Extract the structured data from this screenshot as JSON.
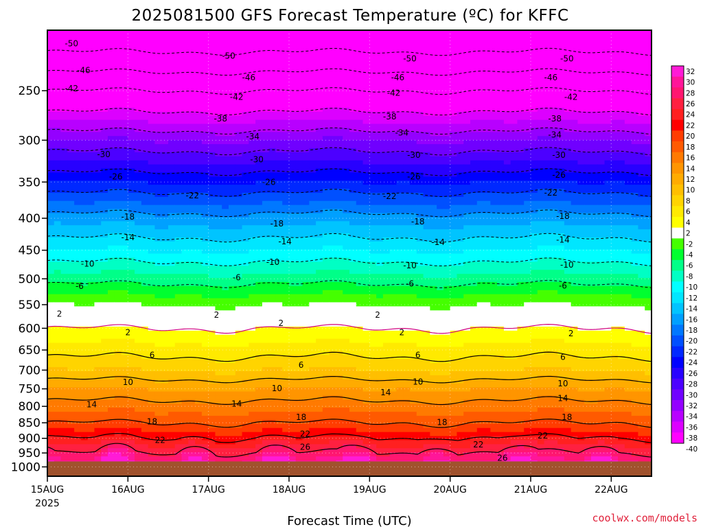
{
  "chart_data": {
    "type": "heatmap",
    "title": "2025081500 GFS Forecast Temperature (ºC) for KFFC",
    "xlabel": "Forecast Time (UTC)",
    "ylabel": "",
    "credit": "coolwx.com/models",
    "x_ticks": [
      "15AUG",
      "16AUG",
      "17AUG",
      "18AUG",
      "19AUG",
      "20AUG",
      "21AUG",
      "22AUG"
    ],
    "x_year": "2025",
    "x_range_days": [
      0,
      7.5
    ],
    "y_ticks": [
      250,
      300,
      350,
      400,
      450,
      500,
      550,
      600,
      650,
      700,
      750,
      800,
      850,
      900,
      950,
      1000
    ],
    "y_range_hpa": [
      1035,
      200
    ],
    "colorbar_levels": [
      32,
      30,
      28,
      26,
      24,
      22,
      20,
      18,
      16,
      14,
      12,
      10,
      8,
      6,
      4,
      2,
      -2,
      -4,
      -6,
      -8,
      -10,
      -12,
      -14,
      -16,
      -18,
      -20,
      -22,
      -24,
      -26,
      -28,
      -30,
      -32,
      -34,
      -36,
      -38,
      -40
    ],
    "colorbar_colors": [
      "#ff1bd6",
      "#ff1699",
      "#ff1770",
      "#ff2040",
      "#ff2020",
      "#ff0000",
      "#ff3d00",
      "#ff5a00",
      "#ff7a00",
      "#ff9500",
      "#ffab00",
      "#ffbf00",
      "#ffd400",
      "#ffea00",
      "#ffff00",
      "#ffffff",
      "#45ff00",
      "#00ff30",
      "#00ff88",
      "#00ffc4",
      "#00ffff",
      "#00e6ff",
      "#00c4ff",
      "#00a0ff",
      "#0078ff",
      "#0050ff",
      "#0028ff",
      "#0000ff",
      "#2800ff",
      "#4c00ff",
      "#7000ff",
      "#9400ff",
      "#b800ff",
      "#dc00ff",
      "#ff00ff"
    ],
    "temperature_profile_day0": [
      {
        "p": 200,
        "t": -54
      },
      {
        "p": 250,
        "t": -42
      },
      {
        "p": 300,
        "t": -32
      },
      {
        "p": 350,
        "t": -24
      },
      {
        "p": 400,
        "t": -17
      },
      {
        "p": 450,
        "t": -12
      },
      {
        "p": 500,
        "t": -7
      },
      {
        "p": 550,
        "t": -2
      },
      {
        "p": 600,
        "t": 2
      },
      {
        "p": 650,
        "t": 5
      },
      {
        "p": 700,
        "t": 8
      },
      {
        "p": 750,
        "t": 12
      },
      {
        "p": 800,
        "t": 15
      },
      {
        "p": 850,
        "t": 18
      },
      {
        "p": 900,
        "t": 22
      },
      {
        "p": 950,
        "t": 26
      },
      {
        "p": 1000,
        "t": 30
      }
    ],
    "contour_labels": [
      {
        "text": "-50",
        "day": 0.3,
        "p": 210
      },
      {
        "text": "-50",
        "day": 2.25,
        "p": 220
      },
      {
        "text": "-50",
        "day": 4.5,
        "p": 222
      },
      {
        "text": "-50",
        "day": 6.45,
        "p": 222
      },
      {
        "text": "-46",
        "day": 0.45,
        "p": 232
      },
      {
        "text": "-46",
        "day": 2.5,
        "p": 238
      },
      {
        "text": "-46",
        "day": 4.35,
        "p": 238
      },
      {
        "text": "-46",
        "day": 6.25,
        "p": 238
      },
      {
        "text": "-42",
        "day": 0.3,
        "p": 248
      },
      {
        "text": "-42",
        "day": 2.35,
        "p": 256
      },
      {
        "text": "-42",
        "day": 4.3,
        "p": 252
      },
      {
        "text": "-42",
        "day": 6.5,
        "p": 256
      },
      {
        "text": "-38",
        "day": 2.15,
        "p": 277
      },
      {
        "text": "-38",
        "day": 4.25,
        "p": 275
      },
      {
        "text": "-38",
        "day": 6.3,
        "p": 277
      },
      {
        "text": "-34",
        "day": 2.55,
        "p": 296
      },
      {
        "text": "-34",
        "day": 4.4,
        "p": 292
      },
      {
        "text": "-34",
        "day": 6.3,
        "p": 294
      },
      {
        "text": "-30",
        "day": 0.7,
        "p": 316
      },
      {
        "text": "-30",
        "day": 2.6,
        "p": 322
      },
      {
        "text": "-30",
        "day": 4.55,
        "p": 317
      },
      {
        "text": "-30",
        "day": 6.35,
        "p": 317
      },
      {
        "text": "-26",
        "day": 0.85,
        "p": 343
      },
      {
        "text": "-26",
        "day": 2.75,
        "p": 350
      },
      {
        "text": "-26",
        "day": 4.55,
        "p": 343
      },
      {
        "text": "-26",
        "day": 6.35,
        "p": 341
      },
      {
        "text": "-22",
        "day": 1.8,
        "p": 368
      },
      {
        "text": "-22",
        "day": 4.25,
        "p": 369
      },
      {
        "text": "-22",
        "day": 6.25,
        "p": 364
      },
      {
        "text": "-18",
        "day": 1.0,
        "p": 398
      },
      {
        "text": "-18",
        "day": 2.85,
        "p": 408
      },
      {
        "text": "-18",
        "day": 4.6,
        "p": 405
      },
      {
        "text": "-18",
        "day": 6.4,
        "p": 397
      },
      {
        "text": "-14",
        "day": 1.0,
        "p": 429
      },
      {
        "text": "-14",
        "day": 2.95,
        "p": 436
      },
      {
        "text": "-14",
        "day": 4.85,
        "p": 437
      },
      {
        "text": "-14",
        "day": 6.4,
        "p": 433
      },
      {
        "text": "-10",
        "day": 0.5,
        "p": 473
      },
      {
        "text": "-10",
        "day": 2.8,
        "p": 470
      },
      {
        "text": "-10",
        "day": 4.5,
        "p": 476
      },
      {
        "text": "-10",
        "day": 6.45,
        "p": 475
      },
      {
        "text": "-6",
        "day": 0.4,
        "p": 514
      },
      {
        "text": "-6",
        "day": 2.35,
        "p": 498
      },
      {
        "text": "-6",
        "day": 4.5,
        "p": 509
      },
      {
        "text": "-6",
        "day": 6.4,
        "p": 513
      },
      {
        "text": "2",
        "day": 0.15,
        "p": 569
      },
      {
        "text": "2",
        "day": 2.1,
        "p": 571
      },
      {
        "text": "2",
        "day": 4.1,
        "p": 571
      },
      {
        "text": "2",
        "day": 2.9,
        "p": 589
      },
      {
        "text": "2",
        "day": 1.0,
        "p": 609
      },
      {
        "text": "2",
        "day": 4.4,
        "p": 609
      },
      {
        "text": "2",
        "day": 6.5,
        "p": 612
      },
      {
        "text": "6",
        "day": 1.3,
        "p": 662
      },
      {
        "text": "6",
        "day": 3.15,
        "p": 687
      },
      {
        "text": "6",
        "day": 4.6,
        "p": 662
      },
      {
        "text": "6",
        "day": 6.4,
        "p": 667
      },
      {
        "text": "10",
        "day": 1.0,
        "p": 732
      },
      {
        "text": "10",
        "day": 2.85,
        "p": 749
      },
      {
        "text": "10",
        "day": 4.6,
        "p": 731
      },
      {
        "text": "10",
        "day": 6.4,
        "p": 736
      },
      {
        "text": "14",
        "day": 0.55,
        "p": 795
      },
      {
        "text": "14",
        "day": 2.35,
        "p": 793
      },
      {
        "text": "14",
        "day": 4.2,
        "p": 760
      },
      {
        "text": "14",
        "day": 6.4,
        "p": 777
      },
      {
        "text": "18",
        "day": 1.3,
        "p": 847
      },
      {
        "text": "18",
        "day": 3.15,
        "p": 833
      },
      {
        "text": "18",
        "day": 4.9,
        "p": 849
      },
      {
        "text": "18",
        "day": 6.45,
        "p": 833
      },
      {
        "text": "22",
        "day": 1.4,
        "p": 906
      },
      {
        "text": "22",
        "day": 3.2,
        "p": 886
      },
      {
        "text": "22",
        "day": 5.35,
        "p": 921
      },
      {
        "text": "22",
        "day": 6.15,
        "p": 891
      },
      {
        "text": "26",
        "day": 3.2,
        "p": 929
      },
      {
        "text": "26",
        "day": 5.65,
        "p": 968
      }
    ],
    "ground_level_hpa": 980,
    "grid": true,
    "legend_placement": "right"
  }
}
